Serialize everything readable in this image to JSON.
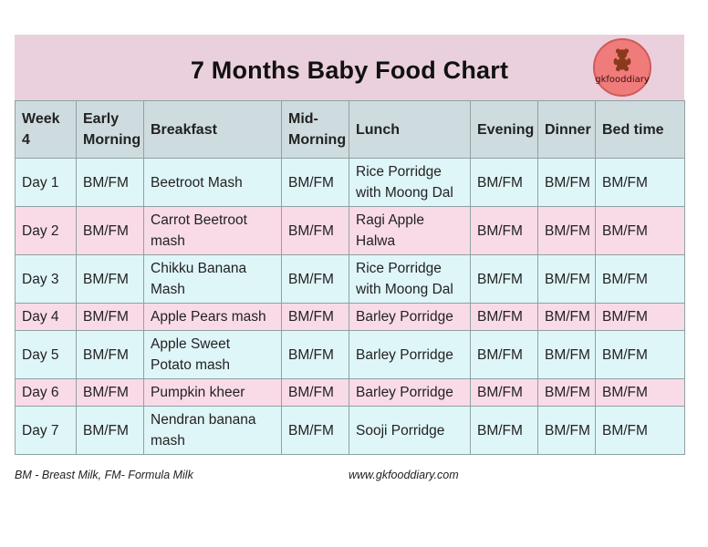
{
  "title": "7 Months Baby Food Chart",
  "logo": {
    "text": "gkfooddiary",
    "icon": "teddy-bear-icon"
  },
  "columns": [
    "Week 4",
    "Early Morning",
    "Breakfast",
    "Mid-Morning",
    "Lunch",
    "Evening",
    "Dinner",
    "Bed time"
  ],
  "rows": [
    [
      "Day 1",
      "BM/FM",
      "Beetroot Mash",
      "BM/FM",
      "Rice Porridge with Moong Dal",
      "BM/FM",
      "BM/FM",
      "BM/FM"
    ],
    [
      "Day 2",
      "BM/FM",
      "Carrot Beetroot mash",
      "BM/FM",
      "Ragi Apple Halwa",
      "BM/FM",
      "BM/FM",
      "BM/FM"
    ],
    [
      "Day 3",
      "BM/FM",
      "Chikku Banana Mash",
      "BM/FM",
      "Rice Porridge with Moong Dal",
      "BM/FM",
      "BM/FM",
      "BM/FM"
    ],
    [
      "Day 4",
      "BM/FM",
      "Apple Pears mash",
      "BM/FM",
      "Barley Porridge",
      "BM/FM",
      "BM/FM",
      "BM/FM"
    ],
    [
      "Day 5",
      "BM/FM",
      "Apple Sweet Potato mash",
      "BM/FM",
      "Barley Porridge",
      "BM/FM",
      "BM/FM",
      "BM/FM"
    ],
    [
      "Day 6",
      "BM/FM",
      "Pumpkin kheer",
      "BM/FM",
      "Barley Porridge",
      "BM/FM",
      "BM/FM",
      "BM/FM"
    ],
    [
      "Day 7",
      "BM/FM",
      "Nendran banana mash",
      "BM/FM",
      "Sooji Porridge",
      "BM/FM",
      "BM/FM",
      "BM/FM"
    ]
  ],
  "footer": {
    "legend": "BM - Breast Milk, FM- Formula Milk",
    "website": "www.gkfooddiary.com"
  },
  "colors": {
    "header_bg": "#ead0dc",
    "column_header_bg": "#cfdcdf",
    "row_cyan": "#dff6f8",
    "row_pink": "#f9dbe7",
    "logo_bg": "#f07b7b"
  }
}
